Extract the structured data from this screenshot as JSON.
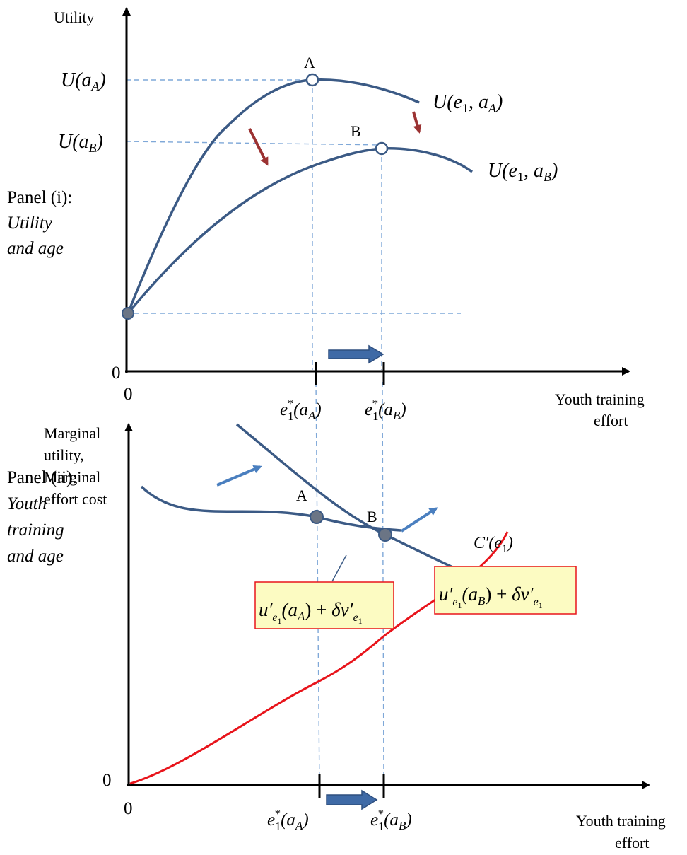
{
  "panel_i": {
    "title_line1": "Panel (i):",
    "title_line2": "Utility",
    "title_line3": "and age",
    "y_axis_label": "Utility",
    "x_axis_label_line1": "Youth training",
    "x_axis_label_line2": "effort",
    "origin_x": "0",
    "origin_y": "0",
    "y_tick_A": "U(a_A)",
    "y_tick_B": "U(a_B)",
    "x_tick_A": "e_1^*(a_A)",
    "x_tick_B": "e_1^*(a_B)",
    "point_A": "A",
    "point_B": "B",
    "curve_A_label": "U(e_1, a_A)",
    "curve_B_label": "U(e_1, a_B)"
  },
  "panel_ii": {
    "title_line1": "Panel (ii):",
    "title_line2": "Youth",
    "title_line3": "training",
    "title_line4": "and age",
    "y_axis_label_line1": "Marginal",
    "y_axis_label_line2": "utility,",
    "y_axis_label_line3": "Marginal",
    "y_axis_label_line4": "effort cost",
    "x_axis_label_line1": "Youth training",
    "x_axis_label_line2": "effort",
    "origin_x": "0",
    "origin_y": "0",
    "x_tick_A": "e_1^*(a_A)",
    "x_tick_B": "e_1^*(a_B)",
    "point_A": "A",
    "point_B": "B",
    "cost_curve_label": "C'(e_1)",
    "mu_A_label": "u'_{e_1}(a_A) + δv'_{e_1}",
    "mu_B_label": "u'_{e_1}(a_B) + δv'_{e_1}"
  },
  "colors": {
    "curve_blue": "#3b5a85",
    "cost_red": "#e8141b",
    "shift_arrow_red": "#9b3232",
    "shift_arrow_blue": "#4a7fbf",
    "dashed_guide": "#7fa8d8",
    "label_box_fill": "#fcfbc2",
    "label_box_border": "#e8141b",
    "point_fill": "#6b7585"
  }
}
